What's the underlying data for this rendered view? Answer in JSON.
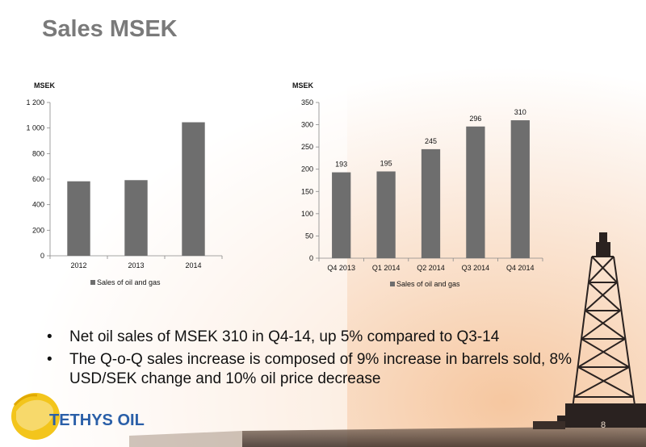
{
  "slide": {
    "title": "Sales MSEK",
    "page_number": "8",
    "bullets": [
      "Net oil sales of MSEK 310 in Q4-14, up 5% compared to Q3-14",
      "The Q-o-Q sales increase is composed of 9% increase in barrels sold, 8% USD/SEK change and 10% oil price decrease"
    ],
    "logo_text": "TETHYS OIL"
  },
  "chart_data": [
    {
      "type": "bar",
      "unit_label": "MSEK",
      "categories": [
        "2012",
        "2013",
        "2014"
      ],
      "series": [
        {
          "name": "Sales of oil and gas",
          "values": [
            583,
            592,
            1045
          ]
        }
      ],
      "yticks": [
        "0",
        "200",
        "400",
        "600",
        "800",
        "1 000",
        "1 200"
      ],
      "ylim": [
        0,
        1200
      ],
      "legend_position": "bottom",
      "bar_color": "#6e6e6e"
    },
    {
      "type": "bar",
      "unit_label": "MSEK",
      "categories": [
        "Q4 2013",
        "Q1 2014",
        "Q2 2014",
        "Q3 2014",
        "Q4 2014"
      ],
      "series": [
        {
          "name": "Sales of oil and gas",
          "values": [
            193,
            195,
            245,
            296,
            310
          ]
        }
      ],
      "data_labels": [
        "193",
        "195",
        "245",
        "296",
        "310"
      ],
      "yticks": [
        "0",
        "50",
        "100",
        "150",
        "200",
        "250",
        "300",
        "350"
      ],
      "ylim": [
        0,
        350
      ],
      "legend_position": "bottom",
      "bar_color": "#6e6e6e"
    }
  ]
}
